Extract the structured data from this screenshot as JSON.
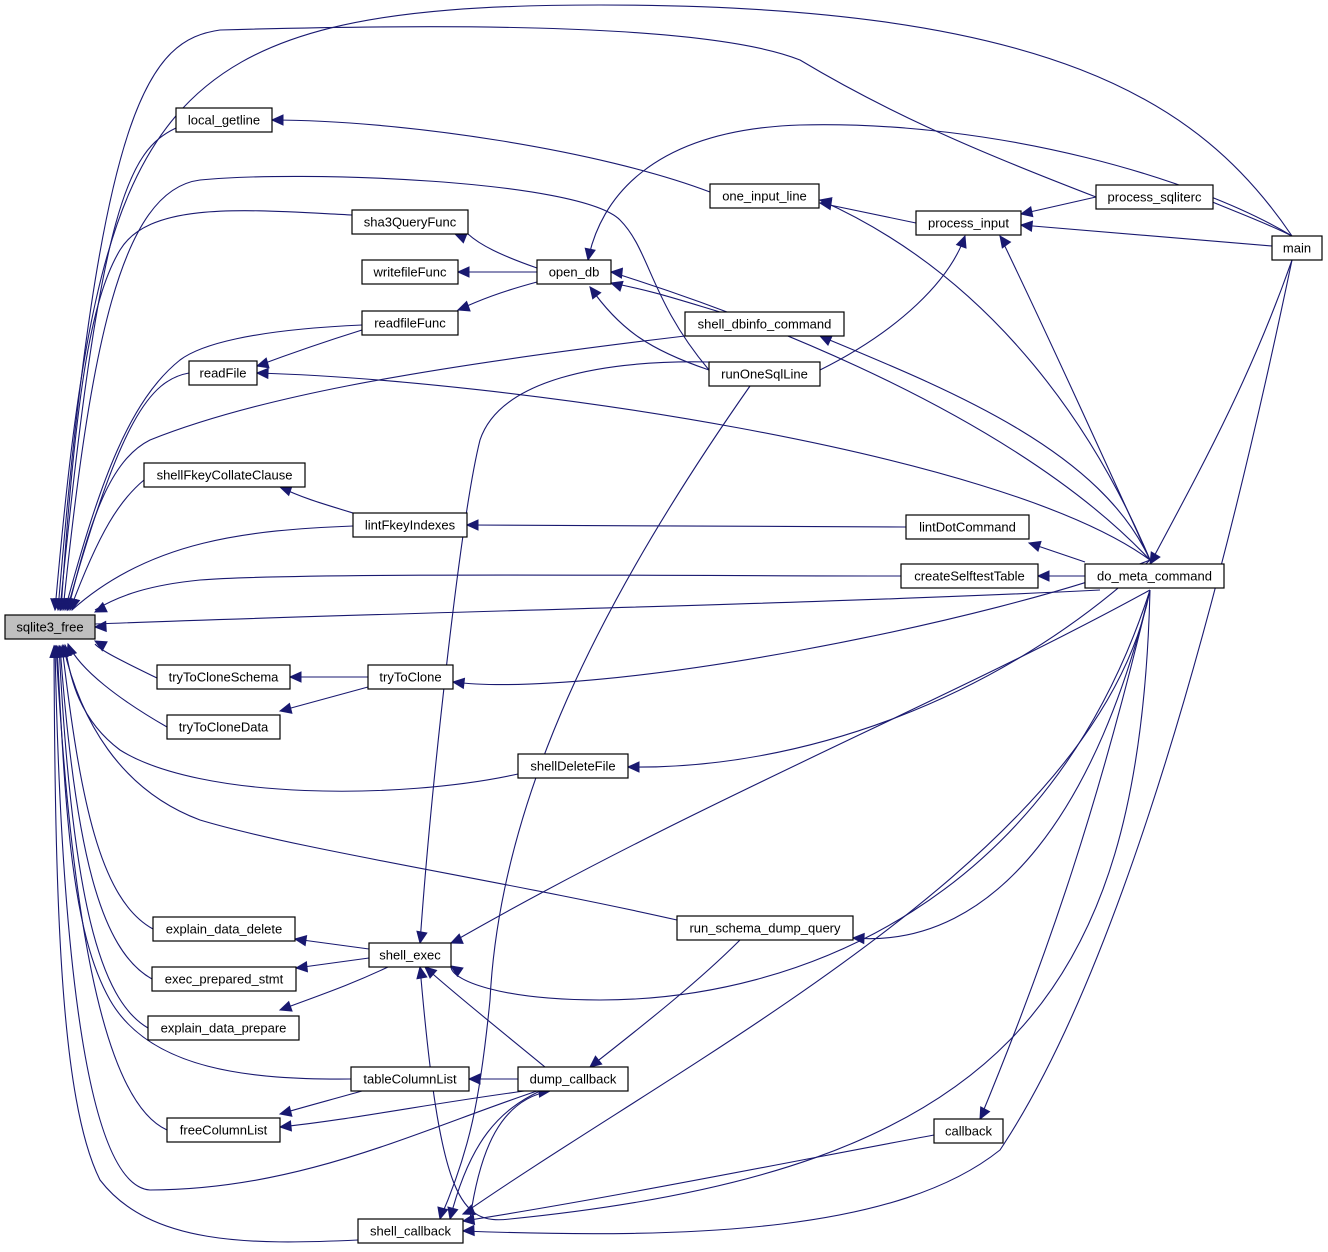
{
  "nodes": [
    {
      "id": "sqlite3_free",
      "label": "sqlite3_free",
      "root": true
    },
    {
      "id": "local_getline",
      "label": "local_getline"
    },
    {
      "id": "sha3QueryFunc",
      "label": "sha3QueryFunc"
    },
    {
      "id": "writefileFunc",
      "label": "writefileFunc"
    },
    {
      "id": "readfileFunc",
      "label": "readfileFunc"
    },
    {
      "id": "readFile",
      "label": "readFile"
    },
    {
      "id": "shellFkeyCollateClause",
      "label": "shellFkeyCollateClause"
    },
    {
      "id": "lintFkeyIndexes",
      "label": "lintFkeyIndexes"
    },
    {
      "id": "tryToCloneSchema",
      "label": "tryToCloneSchema"
    },
    {
      "id": "tryToClone",
      "label": "tryToClone"
    },
    {
      "id": "tryToCloneData",
      "label": "tryToCloneData"
    },
    {
      "id": "explain_data_delete",
      "label": "explain_data_delete"
    },
    {
      "id": "exec_prepared_stmt",
      "label": "exec_prepared_stmt"
    },
    {
      "id": "explain_data_prepare",
      "label": "explain_data_prepare"
    },
    {
      "id": "shell_exec",
      "label": "shell_exec"
    },
    {
      "id": "tableColumnList",
      "label": "tableColumnList"
    },
    {
      "id": "freeColumnList",
      "label": "freeColumnList"
    },
    {
      "id": "shell_callback",
      "label": "shell_callback"
    },
    {
      "id": "open_db",
      "label": "open_db"
    },
    {
      "id": "shellDeleteFile",
      "label": "shellDeleteFile"
    },
    {
      "id": "dump_callback",
      "label": "dump_callback"
    },
    {
      "id": "one_input_line",
      "label": "one_input_line"
    },
    {
      "id": "shell_dbinfo_command",
      "label": "shell_dbinfo_command"
    },
    {
      "id": "runOneSqlLine",
      "label": "runOneSqlLine"
    },
    {
      "id": "run_schema_dump_query",
      "label": "run_schema_dump_query"
    },
    {
      "id": "process_input",
      "label": "process_input"
    },
    {
      "id": "lintDotCommand",
      "label": "lintDotCommand"
    },
    {
      "id": "createSelftestTable",
      "label": "createSelftestTable"
    },
    {
      "id": "callback",
      "label": "callback"
    },
    {
      "id": "process_sqliterc",
      "label": "process_sqliterc"
    },
    {
      "id": "do_meta_command",
      "label": "do_meta_command"
    },
    {
      "id": "main",
      "label": "main"
    }
  ]
}
